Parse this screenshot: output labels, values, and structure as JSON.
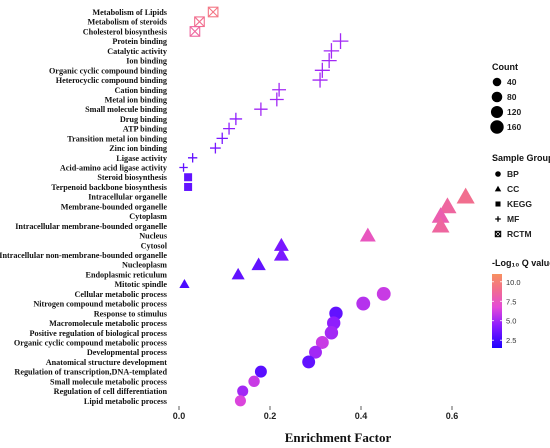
{
  "chart_data": {
    "type": "scatter",
    "xlabel": "Enrichment Factor",
    "xlim": [
      -0.02,
      0.66
    ],
    "xticks": [
      "0.0",
      "0.2",
      "0.4",
      "0.6"
    ],
    "xtick_values": [
      0.0,
      0.2,
      0.4,
      0.6
    ],
    "categories": [
      "Metabolism of Lipids",
      "Metabolism of steroids",
      "Cholesterol biosynthesis",
      "Protein binding",
      "Catalytic activity",
      "Ion binding",
      "Organic cyclic compound binding",
      "Heterocyclic compound binding",
      "Cation binding",
      "Metal ion binding",
      "Small molecule binding",
      "Drug binding",
      "ATP binding",
      "Transition metal ion binding",
      "Zinc ion binding",
      "Ligase activity",
      "Acid-amino acid ligase activity",
      "Steroid biosynthesis",
      "Terpenoid backbone biosynthesis",
      "Intracellular organelle",
      "Membrane-bounded organelle",
      "Cytoplasm",
      "Intracellular membrane-bounded organelle",
      "Nucleus",
      "Cytosol",
      "Intracellular non-membrane-bounded organelle",
      "Nucleoplasm",
      "Endoplasmic reticulum",
      "Mitotic spindle",
      "Cellular metabolic process",
      "Nitrogen compound metabolic process",
      "Response to stimulus",
      "Macromolecule metabolic process",
      "Positive regulation of biological process",
      "Organic cyclic compound metabolic process",
      "Developmental process",
      "Anatomical structure development",
      "Regulation of transcription,DNA-templated",
      "Small molecule metabolic process",
      "Regulation of cell differentiation",
      "Lipid metabolic process"
    ],
    "points": [
      {
        "category": "Metabolism of Lipids",
        "x": 0.075,
        "group": "RCTM",
        "count": 40,
        "q": 9.0
      },
      {
        "category": "Metabolism of steroids",
        "x": 0.045,
        "group": "RCTM",
        "count": 40,
        "q": 8.5
      },
      {
        "category": "Cholesterol biosynthesis",
        "x": 0.035,
        "group": "RCTM",
        "count": 40,
        "q": 8.0
      },
      {
        "category": "Protein binding",
        "x": 0.355,
        "group": "MF",
        "count": 160,
        "q": 4.5
      },
      {
        "category": "Catalytic activity",
        "x": 0.335,
        "group": "MF",
        "count": 150,
        "q": 4.5
      },
      {
        "category": "Ion binding",
        "x": 0.33,
        "group": "MF",
        "count": 140,
        "q": 4.5
      },
      {
        "category": "Organic cyclic compound binding",
        "x": 0.315,
        "group": "MF",
        "count": 140,
        "q": 4.5
      },
      {
        "category": "Heterocyclic compound binding",
        "x": 0.31,
        "group": "MF",
        "count": 140,
        "q": 4.5
      },
      {
        "category": "Cation binding",
        "x": 0.22,
        "group": "MF",
        "count": 110,
        "q": 4.5
      },
      {
        "category": "Metal ion binding",
        "x": 0.215,
        "group": "MF",
        "count": 110,
        "q": 4.5
      },
      {
        "category": "Small molecule binding",
        "x": 0.18,
        "group": "MF",
        "count": 100,
        "q": 4.5
      },
      {
        "category": "Drug binding",
        "x": 0.125,
        "group": "MF",
        "count": 80,
        "q": 4.0
      },
      {
        "category": "ATP binding",
        "x": 0.11,
        "group": "MF",
        "count": 70,
        "q": 4.0
      },
      {
        "category": "Transition metal ion binding",
        "x": 0.095,
        "group": "MF",
        "count": 60,
        "q": 3.5
      },
      {
        "category": "Zinc ion binding",
        "x": 0.08,
        "group": "MF",
        "count": 50,
        "q": 3.5
      },
      {
        "category": "Ligase activity",
        "x": 0.03,
        "group": "MF",
        "count": 30,
        "q": 3.0
      },
      {
        "category": "Acid-amino acid ligase activity",
        "x": 0.01,
        "group": "MF",
        "count": 20,
        "q": 3.0
      },
      {
        "category": "Steroid biosynthesis",
        "x": 0.02,
        "group": "KEGG",
        "count": 25,
        "q": 3.0
      },
      {
        "category": "Terpenoid backbone biosynthesis",
        "x": 0.02,
        "group": "KEGG",
        "count": 25,
        "q": 3.0
      },
      {
        "category": "Intracellular organelle",
        "x": 0.63,
        "group": "CC",
        "count": 160,
        "q": 8.5
      },
      {
        "category": "Membrane-bounded organelle",
        "x": 0.59,
        "group": "CC",
        "count": 160,
        "q": 8.0
      },
      {
        "category": "Cytoplasm",
        "x": 0.575,
        "group": "CC",
        "count": 150,
        "q": 7.5
      },
      {
        "category": "Intracellular membrane-bounded organelle",
        "x": 0.575,
        "group": "CC",
        "count": 150,
        "q": 8.0
      },
      {
        "category": "Nucleus",
        "x": 0.415,
        "group": "CC",
        "count": 110,
        "q": 7.0
      },
      {
        "category": "Cytosol",
        "x": 0.225,
        "group": "CC",
        "count": 90,
        "q": 3.5
      },
      {
        "category": "Intracellular non-membrane-bounded organelle",
        "x": 0.225,
        "group": "CC",
        "count": 90,
        "q": 3.5
      },
      {
        "category": "Nucleoplasm",
        "x": 0.175,
        "group": "CC",
        "count": 80,
        "q": 3.0
      },
      {
        "category": "Endoplasmic reticulum",
        "x": 0.13,
        "group": "CC",
        "count": 60,
        "q": 3.0
      },
      {
        "category": "Mitotic spindle",
        "x": 0.012,
        "group": "CC",
        "count": 25,
        "q": 2.5
      },
      {
        "category": "Cellular metabolic process",
        "x": 0.45,
        "group": "BP",
        "count": 110,
        "q": 5.5
      },
      {
        "category": "Nitrogen compound metabolic process",
        "x": 0.405,
        "group": "BP",
        "count": 110,
        "q": 5.0
      },
      {
        "category": "Response to stimulus",
        "x": 0.345,
        "group": "BP",
        "count": 100,
        "q": 3.0
      },
      {
        "category": "Macromolecule metabolic process",
        "x": 0.34,
        "group": "BP",
        "count": 100,
        "q": 4.0
      },
      {
        "category": "Positive regulation of biological process",
        "x": 0.335,
        "group": "BP",
        "count": 100,
        "q": 4.5
      },
      {
        "category": "Organic cyclic compound metabolic process",
        "x": 0.315,
        "group": "BP",
        "count": 90,
        "q": 5.5
      },
      {
        "category": "Developmental process",
        "x": 0.3,
        "group": "BP",
        "count": 90,
        "q": 4.5
      },
      {
        "category": "Anatomical structure development",
        "x": 0.285,
        "group": "BP",
        "count": 90,
        "q": 3.0
      },
      {
        "category": "Regulation of transcription,DNA-templated",
        "x": 0.18,
        "group": "BP",
        "count": 70,
        "q": 2.8
      },
      {
        "category": "Small molecule metabolic process",
        "x": 0.165,
        "group": "BP",
        "count": 60,
        "q": 5.5
      },
      {
        "category": "Regulation of cell differentiation",
        "x": 0.14,
        "group": "BP",
        "count": 55,
        "q": 4.5
      },
      {
        "category": "Lipid metabolic process",
        "x": 0.135,
        "group": "BP",
        "count": 55,
        "q": 6.0
      }
    ],
    "legend": {
      "count_title": "Count",
      "count_values": [
        40,
        80,
        120,
        160
      ],
      "group_title": "Sample Group",
      "groups": [
        {
          "label": "BP",
          "shape": "circle"
        },
        {
          "label": "CC",
          "shape": "triangle"
        },
        {
          "label": "KEGG",
          "shape": "square"
        },
        {
          "label": "MF",
          "shape": "plus"
        },
        {
          "label": "RCTM",
          "shape": "square-cross"
        }
      ],
      "color_title": "-Log₁₀ Q value",
      "color_ticks": [
        "10.0",
        "7.5",
        "5.0",
        "2.5"
      ],
      "color_tick_values": [
        10.0,
        7.5,
        5.0,
        2.5
      ],
      "color_range": [
        1.5,
        11.0
      ],
      "colors": [
        "#1d00ff",
        "#8a1cff",
        "#e44ad8",
        "#f2708a",
        "#f79060"
      ]
    },
    "grid": false
  }
}
